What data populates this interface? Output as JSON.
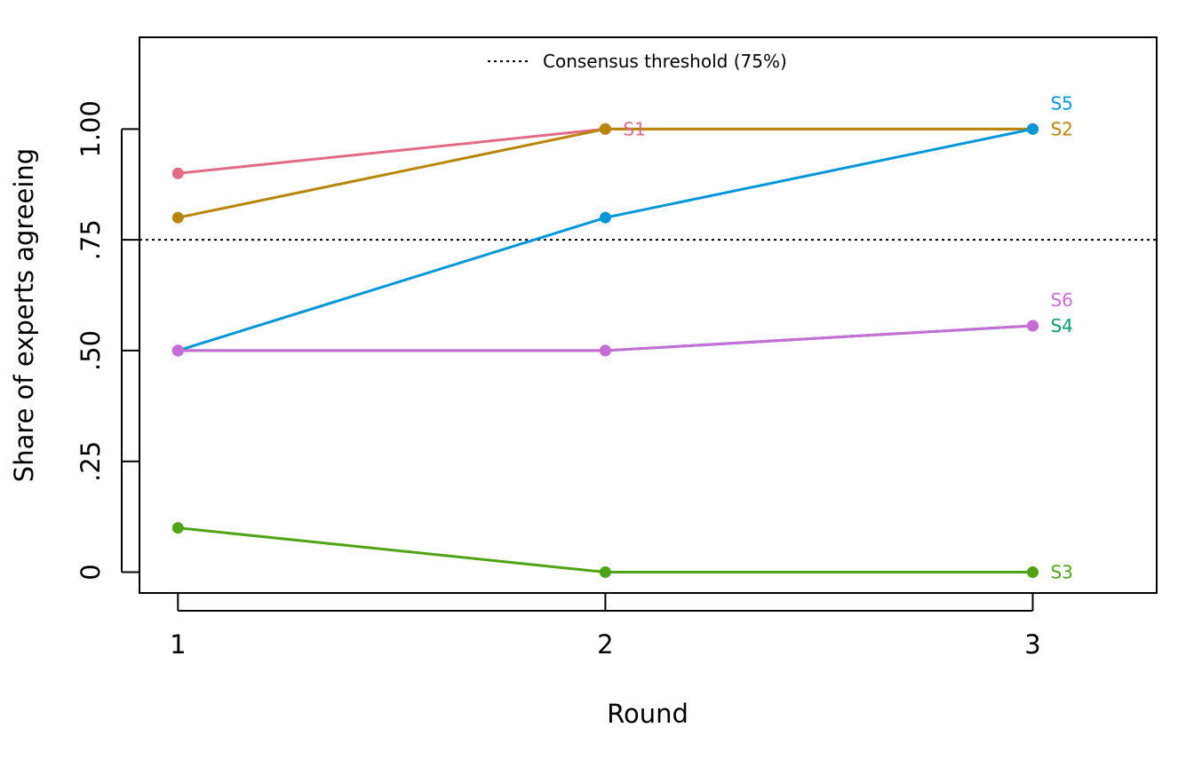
{
  "chart_data": {
    "type": "line",
    "title": "",
    "xlabel": "Round",
    "ylabel": "Share of experts agreeing",
    "x": [
      1,
      2,
      3
    ],
    "x_tick_labels": [
      "1",
      "2",
      "3"
    ],
    "y_ticks": [
      0,
      0.25,
      0.5,
      0.75,
      1.0
    ],
    "y_tick_labels": [
      "0",
      ".25",
      ".50",
      ".75",
      "1.00"
    ],
    "xlim": [
      0.91,
      3.29
    ],
    "ylim": [
      -0.047,
      1.207
    ],
    "grid": false,
    "legend_position": "top-center",
    "threshold": {
      "label": "Consensus threshold (75%)",
      "value": 0.75,
      "style": "dotted"
    },
    "series": [
      {
        "name": "S1",
        "color": "#E16A86",
        "values": [
          0.9,
          1.0,
          1.0
        ],
        "label_at": "round 2",
        "label_offset": "right"
      },
      {
        "name": "S2",
        "color": "#B8860B",
        "values": [
          0.8,
          1.0,
          1.0
        ],
        "label_at": "round 3",
        "label_offset": "right"
      },
      {
        "name": "S3",
        "color": "#50A315",
        "values": [
          0.1,
          0.0,
          0.0
        ],
        "label_at": "round 3",
        "label_offset": "right"
      },
      {
        "name": "S4",
        "color": "#009E73",
        "values": [
          0.5,
          0.5,
          0.556
        ],
        "label_at": "round 3",
        "label_offset": "right"
      },
      {
        "name": "S5",
        "color": "#0096D8",
        "values": [
          0.5,
          0.8,
          1.0
        ],
        "label_at": "round 3",
        "label_offset": "above-right"
      },
      {
        "name": "S6",
        "color": "#C86DD7",
        "values": [
          0.5,
          0.5,
          0.556
        ],
        "label_at": "round 3",
        "label_offset": "above-right"
      }
    ]
  }
}
